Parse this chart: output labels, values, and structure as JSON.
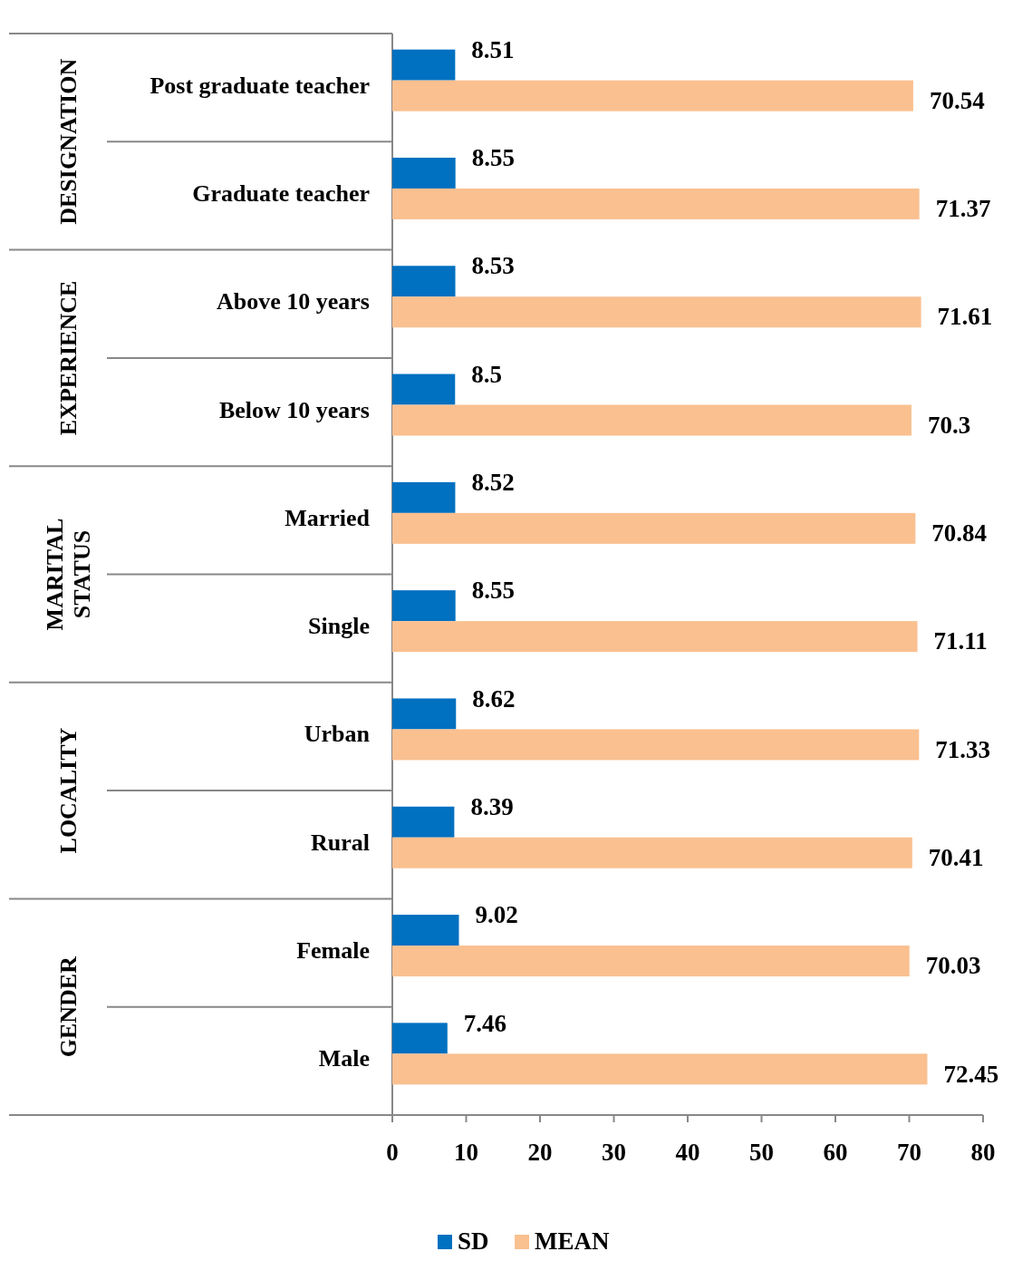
{
  "chart_data": {
    "type": "bar",
    "orientation": "horizontal",
    "categories": [
      "Post graduate teacher",
      "Graduate teacher",
      "Above 10 years",
      "Below 10 years",
      "Married",
      "Single",
      "Urban",
      "Rural",
      "Female",
      "Male"
    ],
    "series": [
      {
        "name": "SD",
        "color": "#0070c0",
        "values": [
          8.51,
          8.55,
          8.53,
          8.5,
          8.52,
          8.55,
          8.62,
          8.39,
          9.02,
          7.46
        ]
      },
      {
        "name": "MEAN",
        "color": "#fac090",
        "values": [
          70.54,
          71.37,
          71.61,
          70.3,
          70.84,
          71.11,
          71.33,
          70.41,
          70.03,
          72.45
        ]
      }
    ],
    "annotations": [
      "DESIGNATION",
      "EXPERIENCE",
      "MARITAL STATUS",
      "LOCALITY",
      "GENDER"
    ],
    "xlim": [
      0,
      80
    ],
    "xticks": [
      0,
      10,
      20,
      30,
      40,
      50,
      60,
      70,
      80
    ],
    "data_labels": true,
    "legend": "bottom",
    "grid": false
  }
}
